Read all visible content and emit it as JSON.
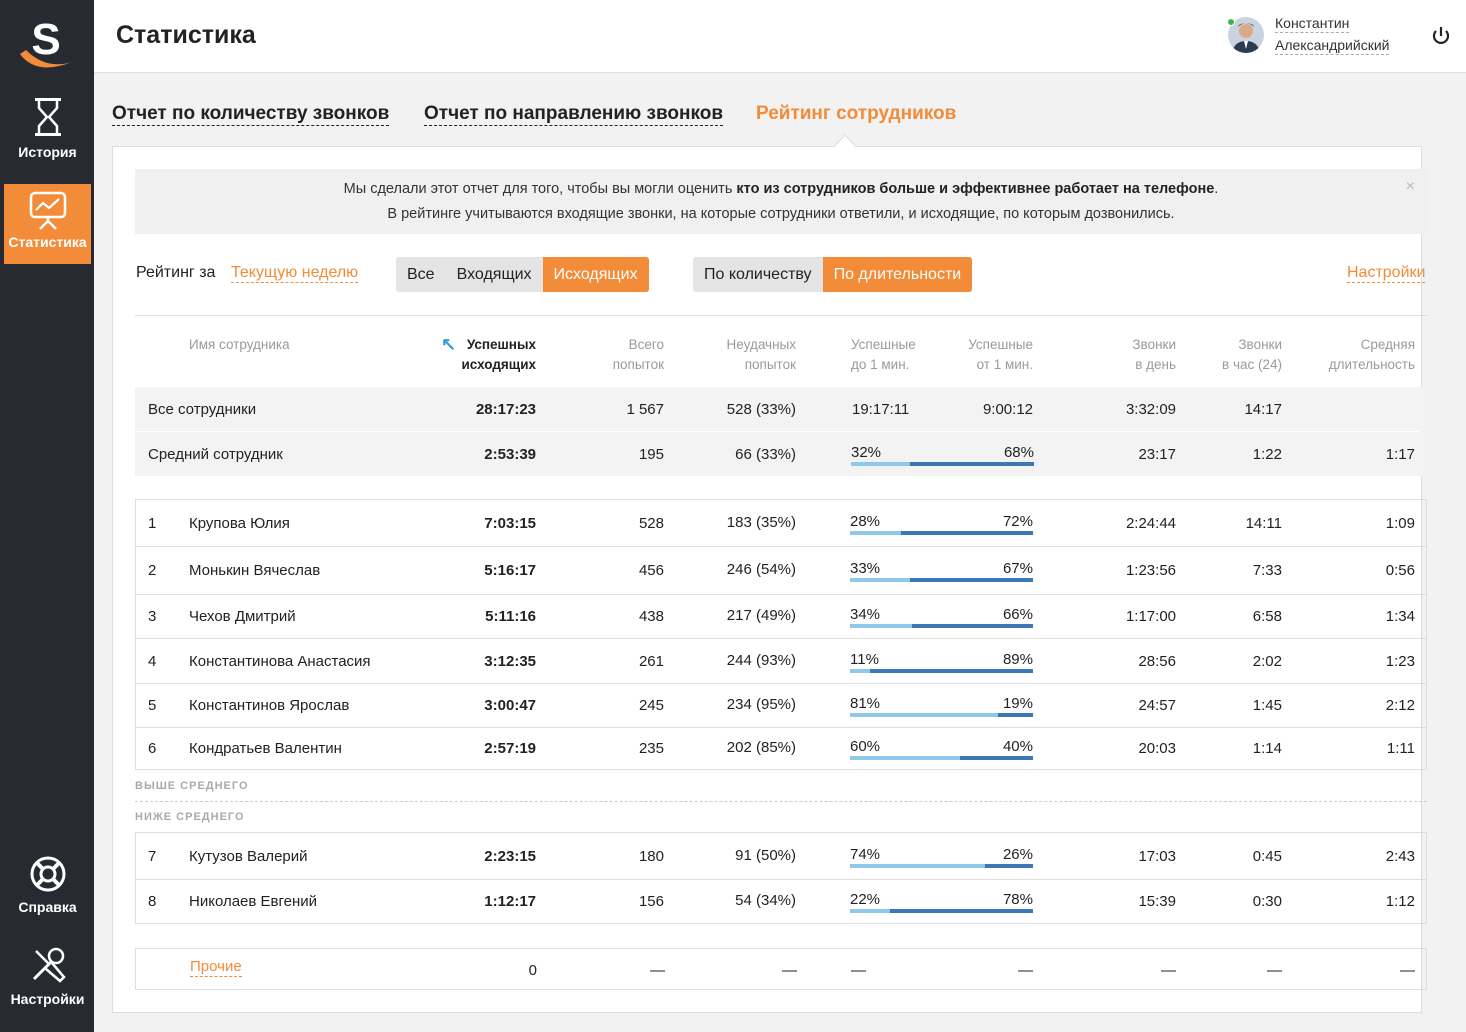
{
  "brand": {
    "logo_letter": "S",
    "accent": "#f28c38"
  },
  "nav": {
    "items": [
      {
        "label": "История",
        "icon": "hourglass-icon"
      },
      {
        "label": "Статистика",
        "icon": "chart-board-icon",
        "active": true
      },
      {
        "label": "Справка",
        "icon": "lifebuoy-icon"
      },
      {
        "label": "Настройки",
        "icon": "tools-icon"
      }
    ]
  },
  "header": {
    "title": "Статистика",
    "user_first": "Константин",
    "user_last": "Александрийский"
  },
  "tabs": [
    {
      "label": "Отчет по количеству звонков"
    },
    {
      "label": "Отчет по направлению звонков"
    },
    {
      "label": "Рейтинг сотрудников",
      "active": true
    }
  ],
  "info": {
    "line1_a": "Мы сделали этот отчет для того, чтобы вы могли оценить ",
    "line1_b": "кто из сотрудников больше и эффективнее работает на телефоне",
    "line1_c": ".",
    "line2": "В рейтинге учитываются входящие звонки, на которые сотрудники ответили, и исходящие, по которым дозвонились.",
    "close": "×"
  },
  "controls": {
    "rating_label": "Рейтинг за",
    "period": "Текущую неделю",
    "direction": [
      "Все",
      "Входящих",
      "Исходящих"
    ],
    "direction_selected": 2,
    "mode": [
      "По количеству",
      "По длительности"
    ],
    "mode_selected": 1,
    "settings": "Настройки"
  },
  "columns": {
    "name": "Имя сотрудника",
    "success_1": "Успешных",
    "success_2": "исходящих",
    "total_1": "Всего",
    "total_2": "попыток",
    "failed_1": "Неудачных",
    "failed_2": "попыток",
    "short_1": "Успешные",
    "short_2": "до 1 мин.",
    "long_1": "Успешные",
    "long_2": "от 1 мин.",
    "perday_1": "Звонки",
    "perday_2": "в день",
    "perhour_1": "Звонки",
    "perhour_2": "в час (24)",
    "avg_1": "Средняя",
    "avg_2": "длительность"
  },
  "summary": [
    {
      "name": "Все сотрудники",
      "success": "28:17:23",
      "total": "1 567",
      "failed": "528 (33%)",
      "short": "19:17:11",
      "long": "9:00:12",
      "perday": "3:32:09",
      "perhour": "14:17",
      "avg": ""
    },
    {
      "name": "Средний сотрудник",
      "success": "2:53:39",
      "total": "195",
      "failed": "66 (33%)",
      "short": "32%",
      "long": "68%",
      "short_pct": 32,
      "perday": "23:17",
      "perhour": "1:22",
      "avg": "1:17"
    }
  ],
  "employees_above": [
    {
      "n": "1",
      "name": "Крупова Юлия",
      "success": "7:03:15",
      "total": "528",
      "failed": "183 (35%)",
      "short": "28%",
      "long": "72%",
      "short_pct": 28,
      "perday": "2:24:44",
      "perhour": "14:11",
      "avg": "1:09"
    },
    {
      "n": "2",
      "name": "Монькин Вячеслав",
      "success": "5:16:17",
      "total": "456",
      "failed": "246 (54%)",
      "short": "33%",
      "long": "67%",
      "short_pct": 33,
      "perday": "1:23:56",
      "perhour": "7:33",
      "avg": "0:56"
    },
    {
      "n": "3",
      "name": "Чехов Дмитрий",
      "success": "5:11:16",
      "total": "438",
      "failed": "217 (49%)",
      "short": "34%",
      "long": "66%",
      "short_pct": 34,
      "perday": "1:17:00",
      "perhour": "6:58",
      "avg": "1:34"
    },
    {
      "n": "4",
      "name": "Константинова Анастасия",
      "success": "3:12:35",
      "total": "261",
      "failed": "244 (93%)",
      "short": "11%",
      "long": "89%",
      "short_pct": 11,
      "perday": "28:56",
      "perhour": "2:02",
      "avg": "1:23"
    },
    {
      "n": "5",
      "name": "Константинов Ярослав",
      "success": "3:00:47",
      "total": "245",
      "failed": "234 (95%)",
      "short": "81%",
      "long": "19%",
      "short_pct": 81,
      "perday": "24:57",
      "perhour": "1:45",
      "avg": "2:12"
    },
    {
      "n": "6",
      "name": "Кондратьев Валентин",
      "success": "2:57:19",
      "total": "235",
      "failed": "202 (85%)",
      "short": "60%",
      "long": "40%",
      "short_pct": 60,
      "perday": "20:03",
      "perhour": "1:14",
      "avg": "1:11"
    }
  ],
  "sections": {
    "above": "ВЫШЕ СРЕДНЕГО",
    "below": "НИЖЕ СРЕДНЕГО"
  },
  "employees_below": [
    {
      "n": "7",
      "name": "Кутузов Валерий",
      "success": "2:23:15",
      "total": "180",
      "failed": "91 (50%)",
      "short": "74%",
      "long": "26%",
      "short_pct": 74,
      "perday": "17:03",
      "perhour": "0:45",
      "avg": "2:43"
    },
    {
      "n": "8",
      "name": "Николаев Евгений",
      "success": "1:12:17",
      "total": "156",
      "failed": "54 (34%)",
      "short": "22%",
      "long": "78%",
      "short_pct": 22,
      "perday": "15:39",
      "perhour": "0:30",
      "avg": "1:12"
    }
  ],
  "others": {
    "name": "Прочие",
    "success": "0",
    "dash": "—"
  }
}
